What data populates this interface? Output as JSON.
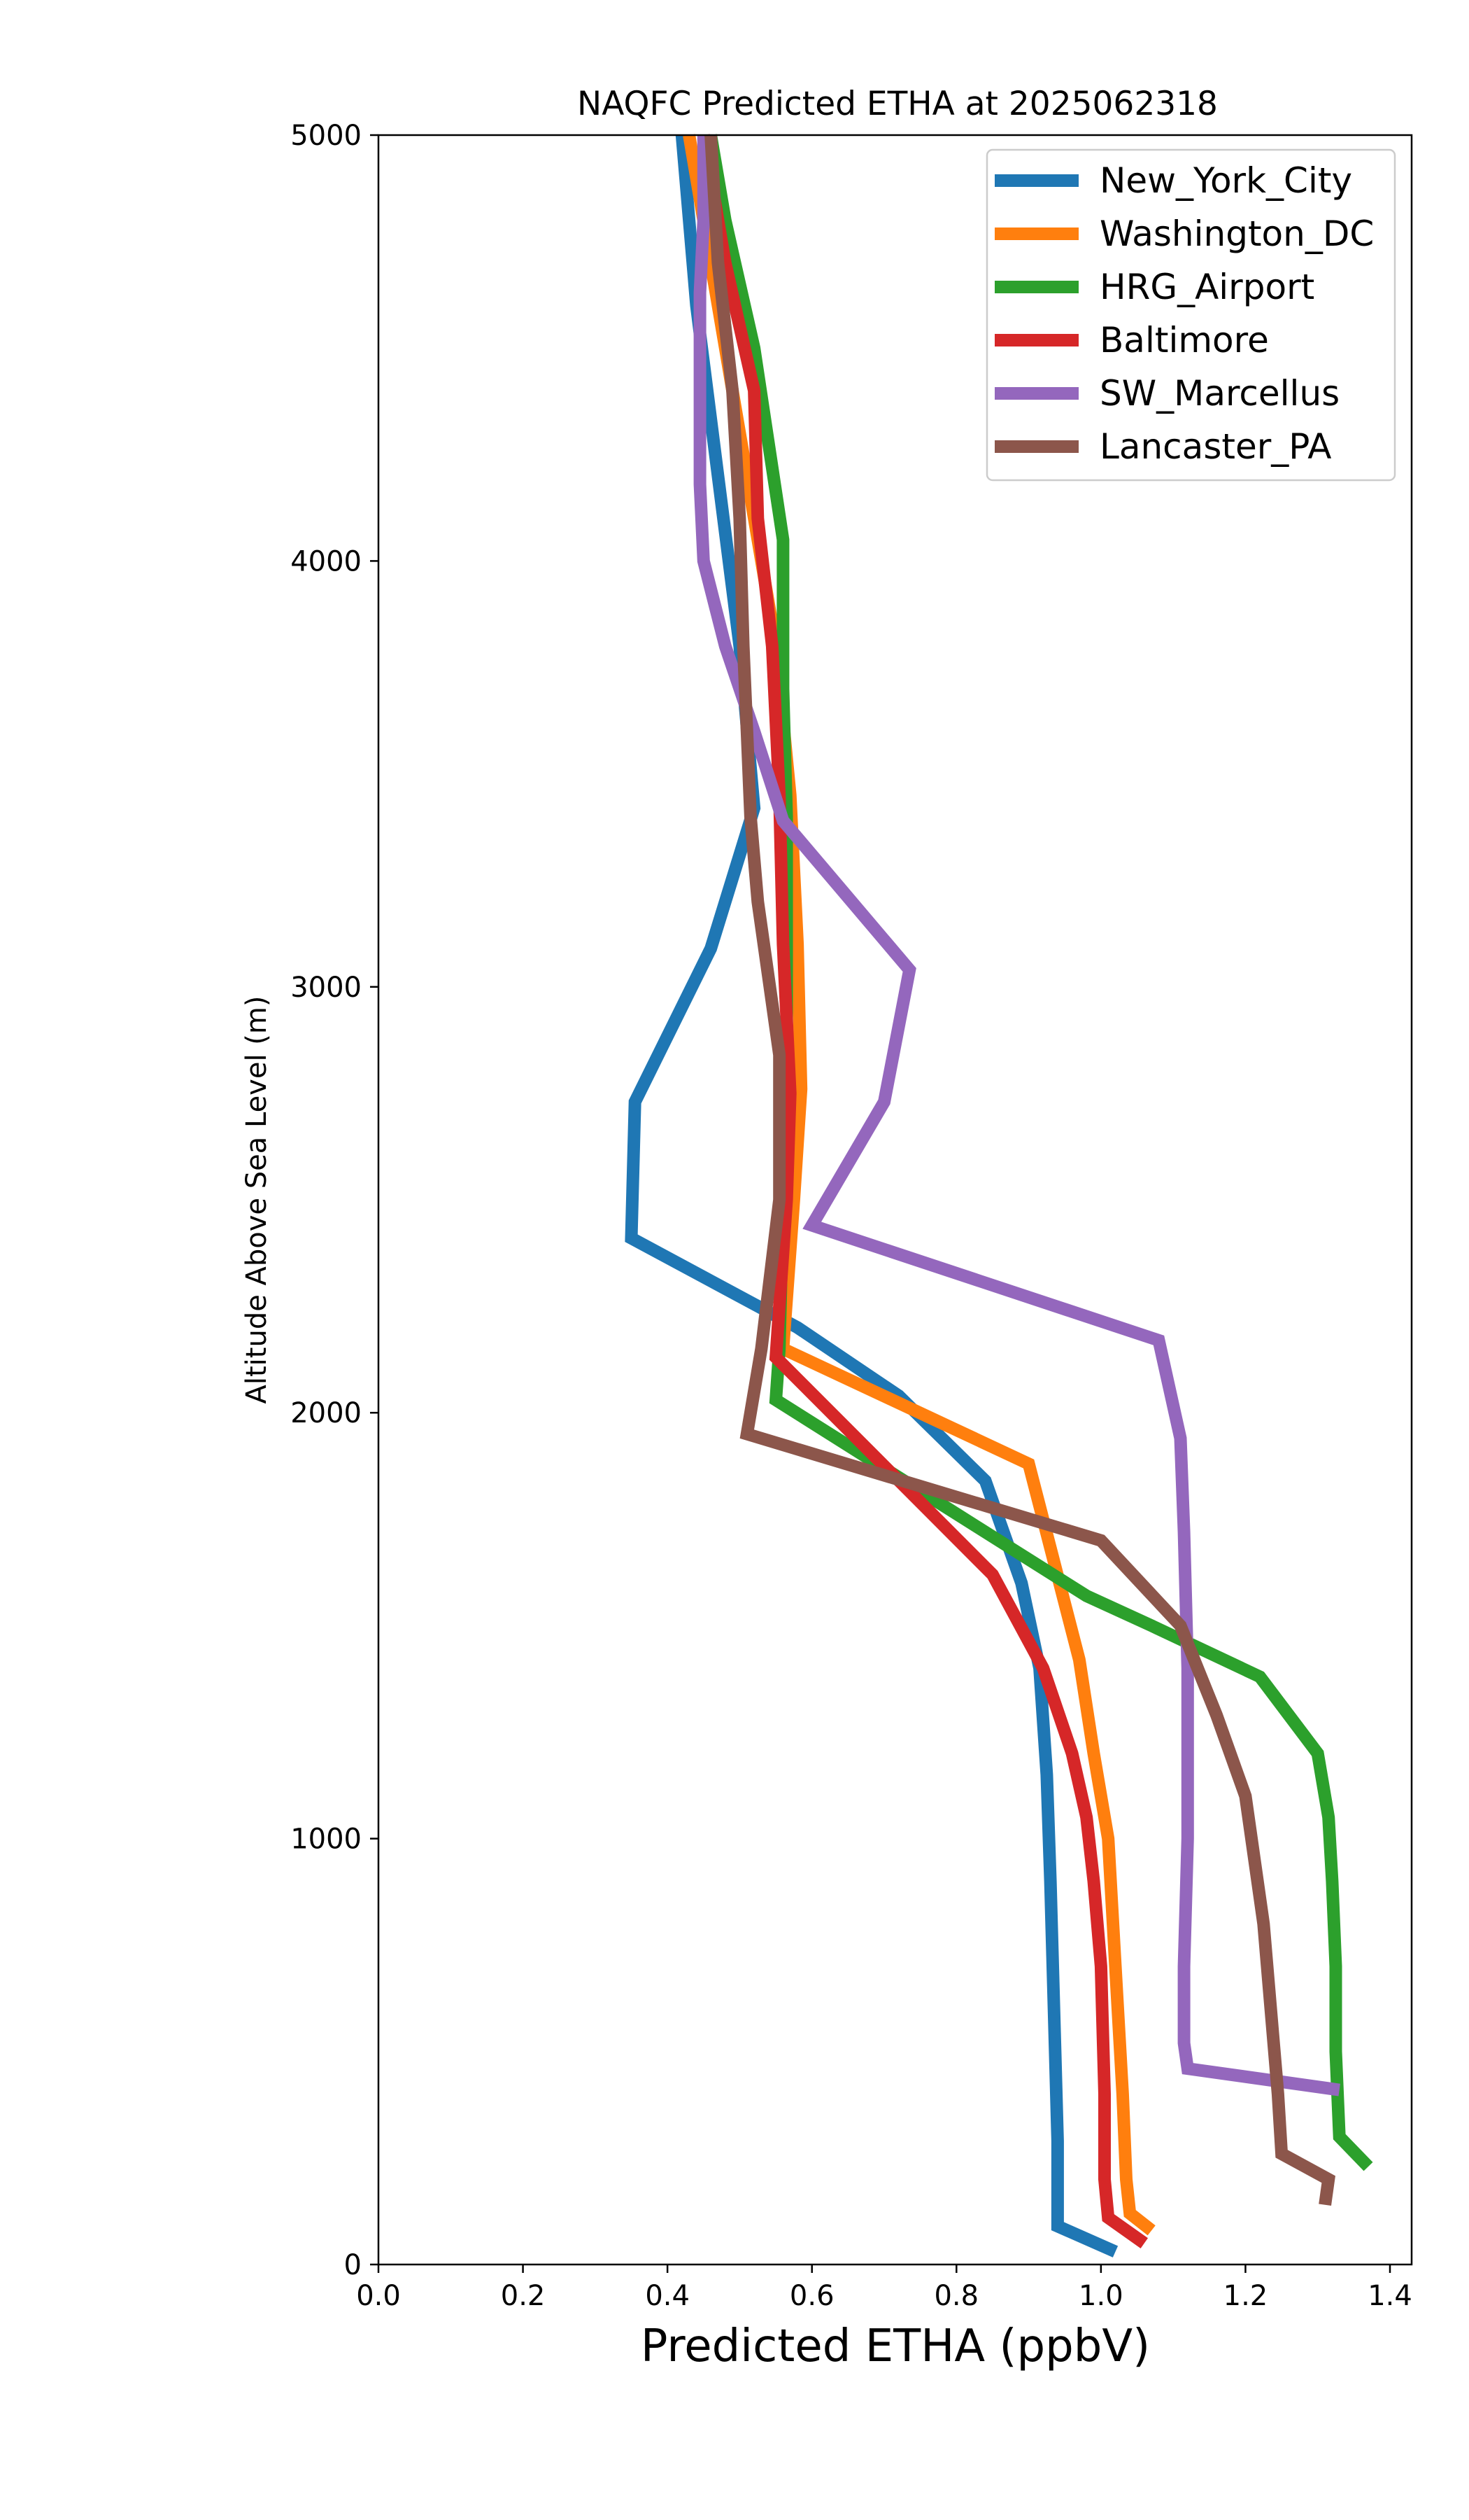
{
  "chart_data": {
    "type": "line",
    "title": "NAQFC Predicted ETHA at 2025062318",
    "xlabel": "Predicted ETHA (ppbV)",
    "ylabel": "Altitude Above Sea Level (m)",
    "xlim": [
      0.0,
      1.43
    ],
    "ylim": [
      0,
      5000
    ],
    "x_ticks": [
      "0.0",
      "0.2",
      "0.4",
      "0.6",
      "0.8",
      "1.0",
      "1.2",
      "1.4"
    ],
    "y_ticks": [
      "0",
      "1000",
      "2000",
      "3000",
      "4000",
      "5000"
    ],
    "grid": false,
    "legend_position": "top-right",
    "series": [
      {
        "name": "New_York_City",
        "color": "#1f77b4",
        "points": [
          [
            1.02,
            30
          ],
          [
            0.94,
            90
          ],
          [
            0.94,
            140
          ],
          [
            0.94,
            200
          ],
          [
            0.94,
            290
          ],
          [
            0.935,
            600
          ],
          [
            0.93,
            900
          ],
          [
            0.925,
            1150
          ],
          [
            0.915,
            1400
          ],
          [
            0.89,
            1600
          ],
          [
            0.84,
            1840
          ],
          [
            0.72,
            2040
          ],
          [
            0.58,
            2200
          ],
          [
            0.35,
            2410
          ],
          [
            0.355,
            2730
          ],
          [
            0.46,
            3090
          ],
          [
            0.52,
            3420
          ],
          [
            0.5,
            3800
          ],
          [
            0.47,
            4200
          ],
          [
            0.44,
            4600
          ],
          [
            0.42,
            5000
          ]
        ]
      },
      {
        "name": "Washington_DC",
        "color": "#ff7f0e",
        "points": [
          [
            1.07,
            80
          ],
          [
            1.04,
            120
          ],
          [
            1.035,
            200
          ],
          [
            1.03,
            400
          ],
          [
            1.02,
            700
          ],
          [
            1.01,
            1000
          ],
          [
            0.99,
            1200
          ],
          [
            0.97,
            1420
          ],
          [
            0.9,
            1880
          ],
          [
            0.56,
            2150
          ],
          [
            0.575,
            2500
          ],
          [
            0.585,
            2760
          ],
          [
            0.58,
            3100
          ],
          [
            0.57,
            3450
          ],
          [
            0.55,
            3800
          ],
          [
            0.51,
            4200
          ],
          [
            0.47,
            4600
          ],
          [
            0.43,
            5000
          ]
        ]
      },
      {
        "name": "HRG_Airport",
        "color": "#2ca02c",
        "points": [
          [
            1.37,
            230
          ],
          [
            1.33,
            300
          ],
          [
            1.325,
            500
          ],
          [
            1.325,
            700
          ],
          [
            1.32,
            900
          ],
          [
            1.315,
            1050
          ],
          [
            1.3,
            1200
          ],
          [
            1.22,
            1380
          ],
          [
            1.07,
            1500
          ],
          [
            0.98,
            1570
          ],
          [
            0.55,
            2030
          ],
          [
            0.555,
            2150
          ],
          [
            0.56,
            2500
          ],
          [
            0.565,
            2750
          ],
          [
            0.565,
            3000
          ],
          [
            0.565,
            3400
          ],
          [
            0.56,
            3700
          ],
          [
            0.56,
            4050
          ],
          [
            0.52,
            4500
          ],
          [
            0.48,
            4800
          ],
          [
            0.46,
            5000
          ]
        ]
      },
      {
        "name": "Baltimore",
        "color": "#d62728",
        "points": [
          [
            1.06,
            50
          ],
          [
            1.01,
            110
          ],
          [
            1.005,
            200
          ],
          [
            1.005,
            400
          ],
          [
            1.0,
            700
          ],
          [
            0.99,
            900
          ],
          [
            0.98,
            1050
          ],
          [
            0.96,
            1200
          ],
          [
            0.92,
            1400
          ],
          [
            0.85,
            1620
          ],
          [
            0.55,
            2130
          ],
          [
            0.565,
            2500
          ],
          [
            0.57,
            2750
          ],
          [
            0.56,
            3100
          ],
          [
            0.555,
            3450
          ],
          [
            0.545,
            3800
          ],
          [
            0.525,
            4100
          ],
          [
            0.52,
            4400
          ],
          [
            0.48,
            4700
          ],
          [
            0.45,
            5000
          ]
        ]
      },
      {
        "name": "SW_Marcellus",
        "color": "#9467bd",
        "points": [
          [
            1.33,
            410
          ],
          [
            1.12,
            460
          ],
          [
            1.115,
            520
          ],
          [
            1.115,
            700
          ],
          [
            1.12,
            1000
          ],
          [
            1.12,
            1400
          ],
          [
            1.115,
            1720
          ],
          [
            1.11,
            1940
          ],
          [
            1.08,
            2170
          ],
          [
            0.6,
            2440
          ],
          [
            0.7,
            2730
          ],
          [
            0.735,
            3040
          ],
          [
            0.56,
            3390
          ],
          [
            0.52,
            3600
          ],
          [
            0.48,
            3800
          ],
          [
            0.45,
            4000
          ],
          [
            0.445,
            4180
          ],
          [
            0.445,
            4500
          ],
          [
            0.445,
            4630
          ],
          [
            0.45,
            4800
          ],
          [
            0.45,
            5000
          ]
        ]
      },
      {
        "name": "Lancaster_PA",
        "color": "#8c564b",
        "points": [
          [
            1.31,
            140
          ],
          [
            1.315,
            200
          ],
          [
            1.25,
            260
          ],
          [
            1.245,
            400
          ],
          [
            1.235,
            600
          ],
          [
            1.225,
            800
          ],
          [
            1.2,
            1100
          ],
          [
            1.16,
            1290
          ],
          [
            1.11,
            1500
          ],
          [
            1.0,
            1700
          ],
          [
            0.51,
            1950
          ],
          [
            0.53,
            2150
          ],
          [
            0.555,
            2500
          ],
          [
            0.555,
            2840
          ],
          [
            0.525,
            3200
          ],
          [
            0.515,
            3400
          ],
          [
            0.51,
            3600
          ],
          [
            0.505,
            3800
          ],
          [
            0.5,
            4100
          ],
          [
            0.49,
            4400
          ],
          [
            0.47,
            4700
          ],
          [
            0.46,
            5000
          ]
        ]
      }
    ]
  }
}
